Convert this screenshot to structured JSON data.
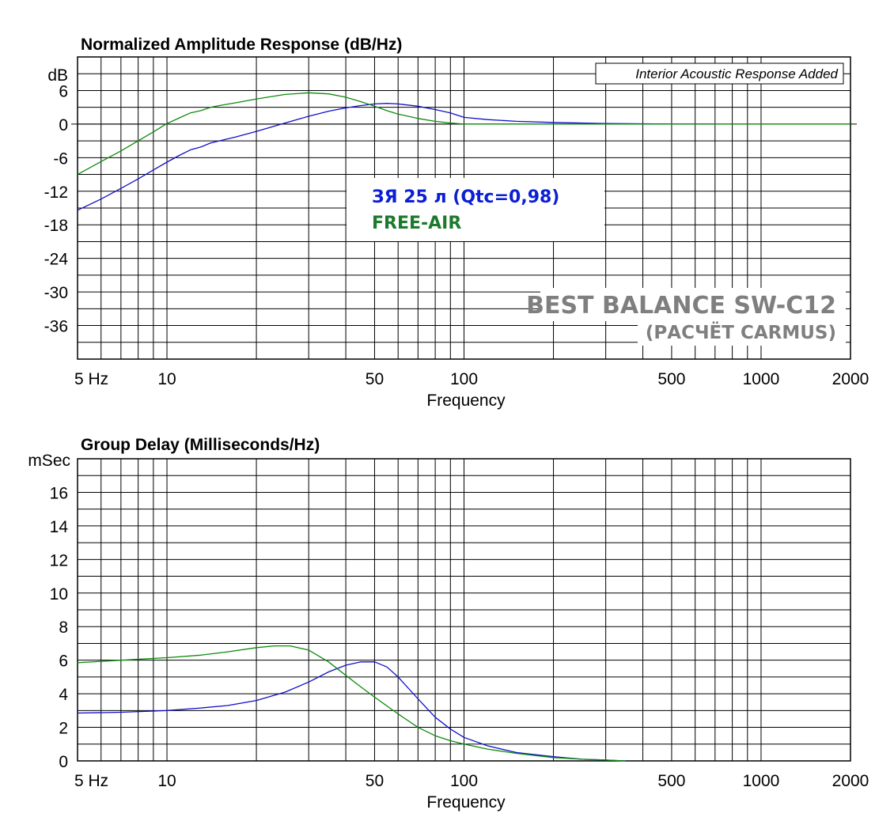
{
  "chart_data": [
    {
      "type": "line",
      "title": "Normalized Amplitude Response (dB/Hz)",
      "xlabel": "Frequency",
      "ylabel": "dB",
      "x_scale": "log",
      "xlim": [
        5,
        2000
      ],
      "ylim": [
        -42,
        12
      ],
      "y_ticks": [
        6,
        0,
        -6,
        -12,
        -18,
        -24,
        -30,
        -36
      ],
      "y_tick_labels": [
        "6",
        "0",
        "-6",
        "-12",
        "-18",
        "-24",
        "-30",
        "-36"
      ],
      "x_tick_labels": [
        {
          "x": 5,
          "label": "5  Hz"
        },
        {
          "x": 10,
          "label": "10"
        },
        {
          "x": 50,
          "label": "50"
        },
        {
          "x": 100,
          "label": "100"
        },
        {
          "x": 500,
          "label": "500"
        },
        {
          "x": 1000,
          "label": "1000"
        },
        {
          "x": 2000,
          "label": "2000"
        }
      ],
      "grid": true,
      "annotation": "Interior Acoustic Response Added",
      "legend": {
        "position": "center",
        "entries": [
          {
            "text": "ЗЯ 25 л (Qtc=0,98)",
            "color": "#0b1fd4"
          },
          {
            "text": "FREE-AIR",
            "color": "#1c7a2c"
          }
        ]
      },
      "watermark": [
        "BEST BALANCE SW-C12",
        "(РАСЧЁТ CARMUS)"
      ],
      "series": [
        {
          "color": "#1010c8",
          "x": [
            5,
            6,
            7,
            8,
            9,
            10,
            11,
            12,
            13,
            14,
            15,
            17,
            20,
            25,
            30,
            35,
            40,
            45,
            50,
            55,
            60,
            70,
            80,
            90,
            100,
            120,
            150,
            200,
            300,
            400,
            500,
            700
          ],
          "y": [
            -15.4,
            -13.4,
            -11.5,
            -9.8,
            -8.2,
            -6.8,
            -5.6,
            -4.6,
            -4.1,
            -3.4,
            -3,
            -2.3,
            -1.3,
            0.2,
            1.4,
            2.3,
            2.9,
            3.3,
            3.6,
            3.7,
            3.6,
            3.2,
            2.6,
            2,
            1.2,
            0.8,
            0.5,
            0.3,
            0.1,
            0.05,
            0,
            0
          ]
        },
        {
          "color": "#0e8a0e",
          "x": [
            5,
            6,
            7,
            8,
            9,
            10,
            11,
            12,
            13,
            14,
            15,
            17,
            20,
            25,
            30,
            35,
            40,
            45,
            50,
            55,
            60,
            70,
            80,
            90,
            100,
            150,
            200,
            500,
            1000,
            2000
          ],
          "y": [
            -9,
            -6.7,
            -4.8,
            -3,
            -1.4,
            0.1,
            1.1,
            2,
            2.4,
            3,
            3.3,
            3.8,
            4.5,
            5.3,
            5.6,
            5.4,
            4.8,
            4,
            3.2,
            2.4,
            1.8,
            1,
            0.5,
            0.2,
            0,
            0,
            0,
            0,
            0,
            0
          ]
        }
      ]
    },
    {
      "type": "line",
      "title": "Group Delay (Milliseconds/Hz)",
      "xlabel": "Frequency",
      "ylabel": "mSec",
      "x_scale": "log",
      "xlim": [
        5,
        2000
      ],
      "ylim": [
        0,
        18
      ],
      "y_ticks": [
        16,
        14,
        12,
        10,
        8,
        6,
        4,
        2,
        0
      ],
      "y_tick_labels": [
        "16",
        "14",
        "12",
        "10",
        "8",
        "6",
        "4",
        "2",
        "0"
      ],
      "x_tick_labels": [
        {
          "x": 5,
          "label": "5  Hz"
        },
        {
          "x": 10,
          "label": "10"
        },
        {
          "x": 50,
          "label": "50"
        },
        {
          "x": 100,
          "label": "100"
        },
        {
          "x": 500,
          "label": "500"
        },
        {
          "x": 1000,
          "label": "1000"
        },
        {
          "x": 2000,
          "label": "2000"
        }
      ],
      "grid": true,
      "series": [
        {
          "color": "#1010c8",
          "x": [
            5,
            7,
            10,
            13,
            16,
            20,
            25,
            30,
            35,
            40,
            45,
            50,
            55,
            60,
            70,
            80,
            90,
            100,
            120,
            150,
            200,
            250,
            300,
            350
          ],
          "y": [
            2.85,
            2.9,
            3,
            3.15,
            3.3,
            3.6,
            4.1,
            4.7,
            5.3,
            5.7,
            5.9,
            5.9,
            5.6,
            5,
            3.7,
            2.6,
            1.9,
            1.4,
            0.9,
            0.5,
            0.25,
            0.1,
            0.05,
            0
          ]
        },
        {
          "color": "#0e8a0e",
          "x": [
            5,
            7,
            10,
            13,
            16,
            20,
            23,
            26,
            30,
            35,
            40,
            45,
            50,
            60,
            70,
            80,
            90,
            100,
            120,
            150,
            200,
            250,
            300,
            350
          ],
          "y": [
            5.85,
            6,
            6.15,
            6.3,
            6.5,
            6.75,
            6.85,
            6.85,
            6.6,
            5.9,
            5.1,
            4.4,
            3.8,
            2.8,
            2,
            1.5,
            1.2,
            1,
            0.7,
            0.45,
            0.2,
            0.1,
            0.05,
            0
          ]
        }
      ]
    }
  ]
}
